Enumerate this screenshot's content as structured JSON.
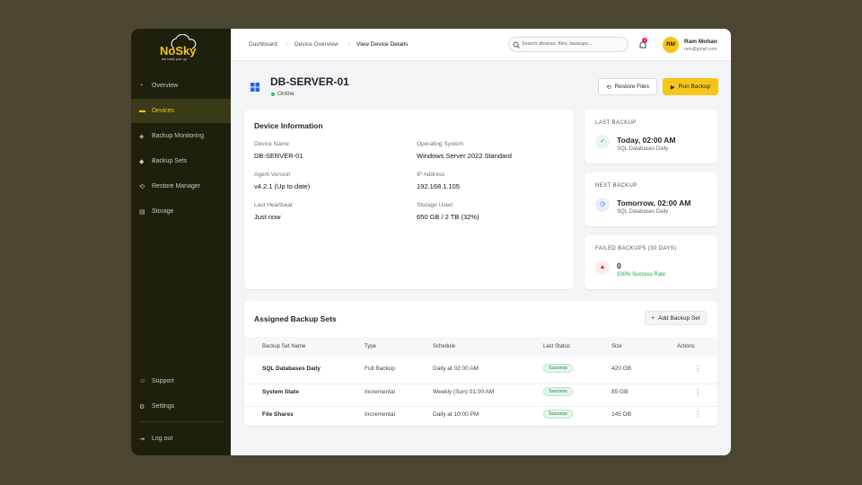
{
  "brand": {
    "name": "NoSky",
    "tagline": "we back you up."
  },
  "nav": [
    "Overview",
    "Devices",
    "Backup Monitoring",
    "Backup Sets",
    "Restore Manager",
    "Storage"
  ],
  "nav_bottom": [
    "Support",
    "Settings",
    "Log out"
  ],
  "breadcrumb": [
    "Dashboard",
    "Device Overview",
    "View Device Details"
  ],
  "search_placeholder": "Search devices, files, backups...",
  "notification_count": "3",
  "user": {
    "initials": "RM",
    "name": "Ram Mohan",
    "email": "ram@gmail.com"
  },
  "device": {
    "name": "DB-SERVER-01",
    "status": "Online"
  },
  "actions": [
    "Restore Files",
    "Run Backup"
  ],
  "device_info": {
    "title": "Device Information",
    "fields": [
      {
        "label": "Device Name",
        "value": "DB-SERVER-01"
      },
      {
        "label": "Operating System",
        "value": "Windows Server 2022 Standard"
      },
      {
        "label": "Agent Version",
        "value": "v4.2.1 (Up to date)"
      },
      {
        "label": "IP Address",
        "value": "192.168.1.105"
      },
      {
        "label": "Last Heartbeat",
        "value": "Just now"
      },
      {
        "label": "Storage Used",
        "value": "650 GB / 2 TB (32%)"
      }
    ]
  },
  "summary": [
    {
      "title": "LAST BACKUP",
      "value": "Today, 02:00 AM",
      "detail": "SQL Databases Daily"
    },
    {
      "title": "NEXT BACKUP",
      "value": "Tomorrow, 02:00 AM",
      "detail": "SQL Databases Daily"
    },
    {
      "title": "FAILED BACKUPS (30 DAYS)",
      "value": "0",
      "detail": "100% Success Rate"
    }
  ],
  "backup_sets": {
    "title": "Assigned Backup Sets",
    "add_button": "Add Backup Set",
    "columns": [
      "Backup Set Name",
      "Type",
      "Schedule",
      "Last Status",
      "Size",
      "Actions"
    ],
    "rows": [
      [
        "SQL Databases Daily",
        "Full Backup",
        "Daily at 02:00 AM",
        "Success",
        "420 GB"
      ],
      [
        "System State",
        "Incremental",
        "Weekly (Sun) 01:00 AM",
        "Success",
        "85 GB"
      ],
      [
        "File Shares",
        "Incremental",
        "Daily at 10:00 PM",
        "Success",
        "145 GB"
      ]
    ]
  }
}
